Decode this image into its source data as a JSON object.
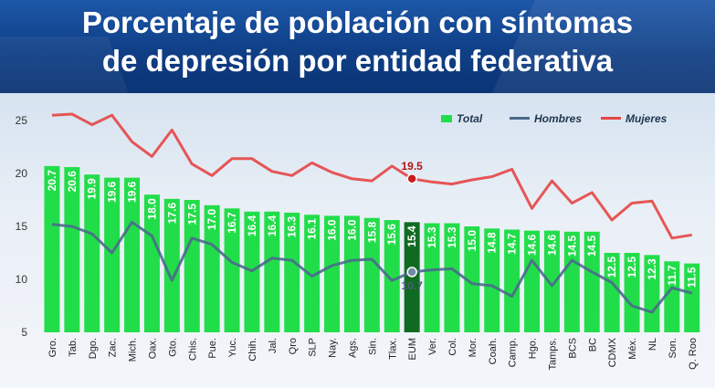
{
  "header": {
    "title_line1": "Porcentaje de población con síntomas",
    "title_line2": "de depresión por entidad federativa"
  },
  "colors": {
    "total": "#22dd4a",
    "total_highlight": "#0f6b22",
    "hombres": "#4a6a8c",
    "mujeres": "#e64545",
    "header_bg": "#134a96"
  },
  "chart_data": {
    "type": "bar",
    "categories": [
      "Gro.",
      "Tab.",
      "Dgo.",
      "Zac.",
      "Mich.",
      "Oax.",
      "Gto.",
      "Chis.",
      "Pue.",
      "Yuc.",
      "Chih.",
      "Jal.",
      "Qro",
      "SLP",
      "Nay.",
      "Ags.",
      "Sin.",
      "Tlax.",
      "EUM",
      "Ver.",
      "Col.",
      "Mor.",
      "Coah.",
      "Camp.",
      "Hgo.",
      "Tamps.",
      "BCS",
      "BC",
      "CDMX",
      "Méx.",
      "NL",
      "Son.",
      "Q. Roo"
    ],
    "series": [
      {
        "name": "Total",
        "type": "bar",
        "values": [
          20.7,
          20.6,
          19.9,
          19.6,
          19.6,
          18.0,
          17.6,
          17.5,
          17.0,
          16.7,
          16.4,
          16.4,
          16.3,
          16.1,
          16.0,
          16.0,
          15.8,
          15.6,
          15.4,
          15.3,
          15.3,
          15.0,
          14.8,
          14.7,
          14.6,
          14.6,
          14.5,
          14.5,
          12.5,
          12.5,
          12.3,
          11.7,
          11.5
        ],
        "data_labels": [
          "20.7",
          "20.6",
          "19.9",
          "19.6",
          "19.6",
          "18.0",
          "17.6",
          "17.5",
          "17.0",
          "16.7",
          "16.4",
          "16.4",
          "16.3",
          "16.1",
          "16.0",
          "16.0",
          "15.8",
          "15.6",
          "15.4",
          "15.3",
          "15.3",
          "15.0",
          "14.8",
          "14.7",
          "14.6",
          "14.6",
          "14.5",
          "14.5",
          "12.5",
          "12.5",
          "12.3",
          "11.7",
          "11.5"
        ],
        "highlight_category": "EUM"
      },
      {
        "name": "Hombres",
        "type": "line",
        "values": [
          15.2,
          15.0,
          14.3,
          12.5,
          15.4,
          14.1,
          9.9,
          13.9,
          13.3,
          11.6,
          10.8,
          12.0,
          11.8,
          10.3,
          11.3,
          11.8,
          11.9,
          9.9,
          10.7,
          10.9,
          11.0,
          9.6,
          9.4,
          8.4,
          11.8,
          9.4,
          11.8,
          10.7,
          9.7,
          7.5,
          6.9,
          9.2,
          8.7
        ],
        "labeled_points": [
          {
            "category": "EUM",
            "label": "10.7"
          }
        ]
      },
      {
        "name": "Mujeres",
        "type": "line",
        "values": [
          25.5,
          25.6,
          24.6,
          25.5,
          23.0,
          21.6,
          24.1,
          20.9,
          19.8,
          21.4,
          21.4,
          20.2,
          19.8,
          21.0,
          20.1,
          19.5,
          19.3,
          20.7,
          19.5,
          19.2,
          19.0,
          19.4,
          19.7,
          20.4,
          16.7,
          19.3,
          17.2,
          18.2,
          15.6,
          17.2,
          17.4,
          13.9,
          14.2
        ],
        "labeled_points": [
          {
            "category": "EUM",
            "label": "19.5"
          }
        ]
      }
    ],
    "y_ticks": [
      "5",
      "10",
      "15",
      "20",
      "25"
    ],
    "ylim": [
      5,
      26.5
    ],
    "grid": false,
    "legend_position": "top-right",
    "legend": [
      "Total",
      "Hombres",
      "Mujeres"
    ]
  }
}
